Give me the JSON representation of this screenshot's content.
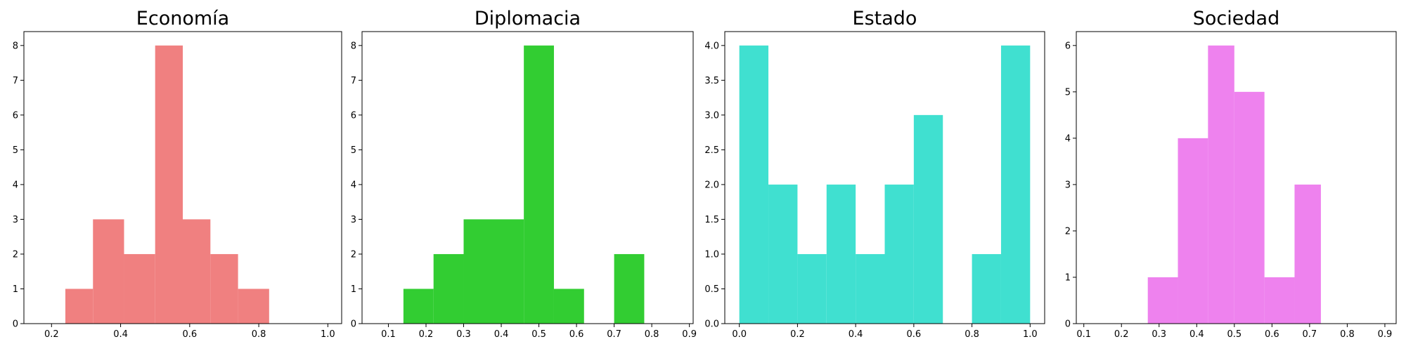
{
  "chart_data": [
    {
      "type": "bar",
      "title": "Economía",
      "color": "#f08080",
      "xlim": [
        0.12,
        1.04
      ],
      "ylim": [
        0,
        8.4
      ],
      "xticks": [
        "0.2",
        "0.4",
        "0.6",
        "0.8",
        "1.0"
      ],
      "yticks": [
        "0",
        "1",
        "2",
        "3",
        "4",
        "5",
        "6",
        "7",
        "8"
      ],
      "bins": [
        {
          "x0": 0.24,
          "x1": 0.32,
          "count": 1
        },
        {
          "x0": 0.32,
          "x1": 0.41,
          "count": 3
        },
        {
          "x0": 0.41,
          "x1": 0.5,
          "count": 2
        },
        {
          "x0": 0.5,
          "x1": 0.58,
          "count": 8
        },
        {
          "x0": 0.58,
          "x1": 0.66,
          "count": 3
        },
        {
          "x0": 0.66,
          "x1": 0.74,
          "count": 2
        },
        {
          "x0": 0.74,
          "x1": 0.83,
          "count": 1
        }
      ]
    },
    {
      "type": "bar",
      "title": "Diplomacia",
      "color": "#32cd32",
      "xlim": [
        0.03,
        0.91
      ],
      "ylim": [
        0,
        8.4
      ],
      "xticks": [
        "0.1",
        "0.2",
        "0.3",
        "0.4",
        "0.5",
        "0.6",
        "0.7",
        "0.8",
        "0.9"
      ],
      "yticks": [
        "0",
        "1",
        "2",
        "3",
        "4",
        "5",
        "6",
        "7",
        "8"
      ],
      "bins": [
        {
          "x0": 0.14,
          "x1": 0.22,
          "count": 1
        },
        {
          "x0": 0.22,
          "x1": 0.3,
          "count": 2
        },
        {
          "x0": 0.3,
          "x1": 0.46,
          "count": 3
        },
        {
          "x0": 0.46,
          "x1": 0.54,
          "count": 8
        },
        {
          "x0": 0.54,
          "x1": 0.62,
          "count": 1
        },
        {
          "x0": 0.7,
          "x1": 0.78,
          "count": 2
        }
      ]
    },
    {
      "type": "bar",
      "title": "Estado",
      "color": "#40e0d0",
      "xlim": [
        -0.05,
        1.05
      ],
      "ylim": [
        0,
        4.2
      ],
      "xticks": [
        "0.0",
        "0.2",
        "0.4",
        "0.6",
        "0.8",
        "1.0"
      ],
      "yticks": [
        "0.0",
        "0.5",
        "1.0",
        "1.5",
        "2.0",
        "2.5",
        "3.0",
        "3.5",
        "4.0"
      ],
      "bins": [
        {
          "x0": 0.0,
          "x1": 0.1,
          "count": 4
        },
        {
          "x0": 0.1,
          "x1": 0.2,
          "count": 2
        },
        {
          "x0": 0.2,
          "x1": 0.3,
          "count": 1
        },
        {
          "x0": 0.3,
          "x1": 0.4,
          "count": 2
        },
        {
          "x0": 0.4,
          "x1": 0.5,
          "count": 1
        },
        {
          "x0": 0.5,
          "x1": 0.6,
          "count": 2
        },
        {
          "x0": 0.6,
          "x1": 0.7,
          "count": 3
        },
        {
          "x0": 0.8,
          "x1": 0.9,
          "count": 1
        },
        {
          "x0": 0.9,
          "x1": 1.0,
          "count": 4
        }
      ]
    },
    {
      "type": "bar",
      "title": "Sociedad",
      "color": "#ee82ee",
      "xlim": [
        0.08,
        0.93
      ],
      "ylim": [
        0,
        6.3
      ],
      "xticks": [
        "0.1",
        "0.2",
        "0.3",
        "0.4",
        "0.5",
        "0.6",
        "0.7",
        "0.8",
        "0.9"
      ],
      "yticks": [
        "0",
        "1",
        "2",
        "3",
        "4",
        "5",
        "6"
      ],
      "bins": [
        {
          "x0": 0.27,
          "x1": 0.35,
          "count": 1
        },
        {
          "x0": 0.35,
          "x1": 0.43,
          "count": 4
        },
        {
          "x0": 0.43,
          "x1": 0.5,
          "count": 6
        },
        {
          "x0": 0.5,
          "x1": 0.58,
          "count": 5
        },
        {
          "x0": 0.58,
          "x1": 0.66,
          "count": 1
        },
        {
          "x0": 0.66,
          "x1": 0.73,
          "count": 3
        }
      ]
    }
  ]
}
